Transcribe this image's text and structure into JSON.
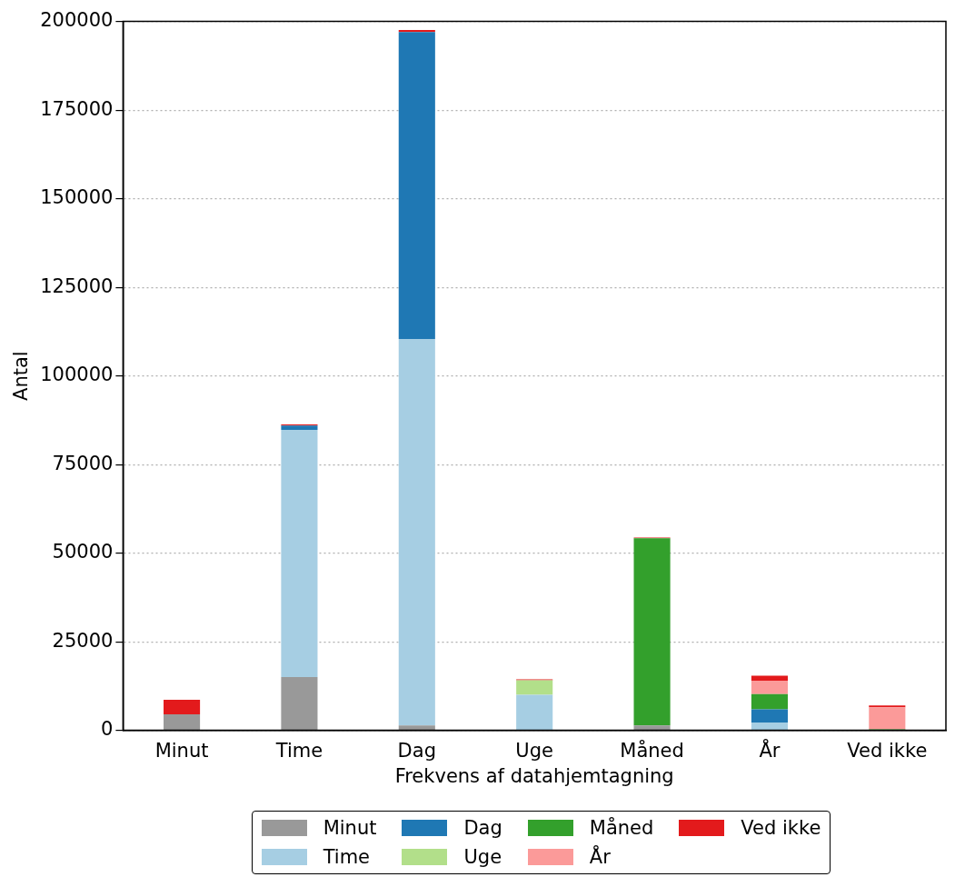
{
  "chart_data": {
    "type": "bar",
    "stacked": true,
    "xlabel": "Frekvens af datahjemtagning",
    "ylabel": "Antal",
    "categories": [
      "Minut",
      "Time",
      "Dag",
      "Uge",
      "Måned",
      "År",
      "Ved ikke"
    ],
    "series": [
      {
        "name": "Minut",
        "color": "#999999",
        "values": [
          4500,
          15000,
          1400,
          0,
          1400,
          0,
          0
        ]
      },
      {
        "name": "Time",
        "color": "#a6cee3",
        "values": [
          0,
          69800,
          109000,
          10000,
          0,
          2200,
          0
        ]
      },
      {
        "name": "Dag",
        "color": "#1f78b4",
        "values": [
          0,
          1200,
          86600,
          0,
          0,
          3700,
          0
        ]
      },
      {
        "name": "Uge",
        "color": "#b2df8a",
        "values": [
          0,
          0,
          0,
          4100,
          0,
          0,
          0
        ]
      },
      {
        "name": "Måned",
        "color": "#33a02c",
        "values": [
          0,
          0,
          0,
          0,
          52800,
          4300,
          300
        ]
      },
      {
        "name": "År",
        "color": "#fb9a99",
        "values": [
          0,
          0,
          0,
          0,
          0,
          3800,
          6200
        ]
      },
      {
        "name": "Ved ikke",
        "color": "#e31a1c",
        "values": [
          4100,
          300,
          600,
          300,
          200,
          1400,
          500
        ]
      }
    ],
    "ylim": [
      0,
      200000
    ],
    "yticks": [
      0,
      25000,
      50000,
      75000,
      100000,
      125000,
      150000,
      175000,
      200000
    ],
    "grid": "y",
    "legend": "bottom"
  }
}
